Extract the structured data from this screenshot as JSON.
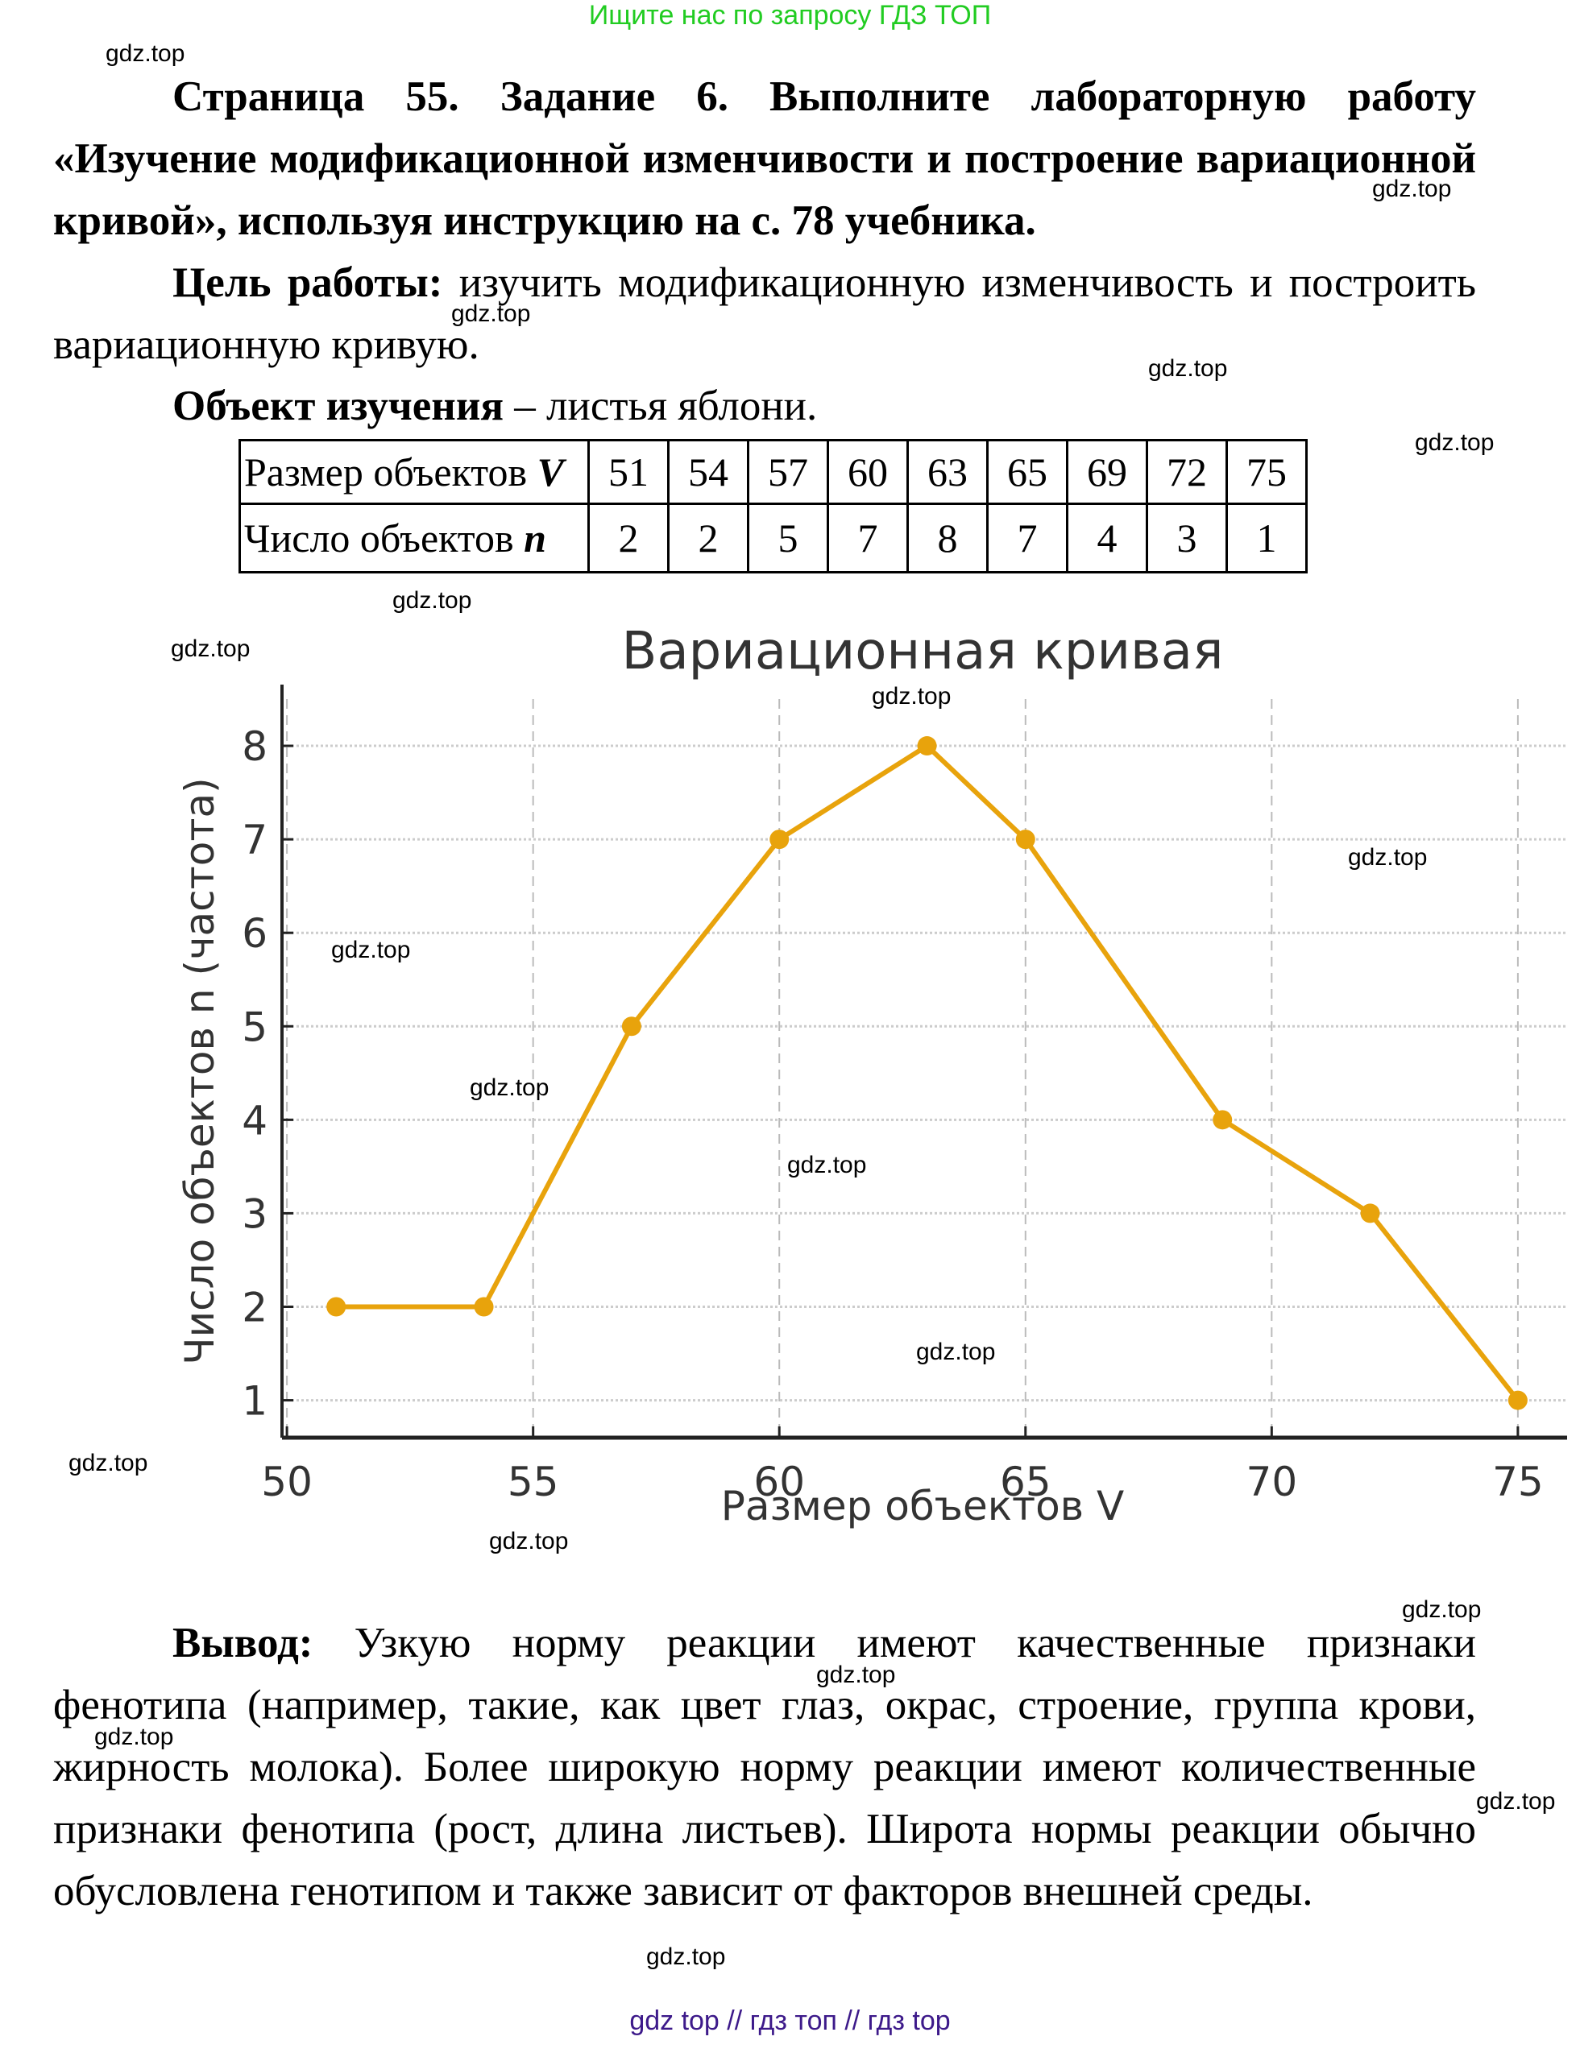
{
  "banner": "Ищите нас по запросу ГДЗ ТОП",
  "heading": "Страница 55. Задание 6. Выполните лабораторную работу «Изучение модификационной изменчивости и построение вариационной кривой», используя инструкцию на с. 78 учебника.",
  "goal": {
    "label": "Цель работы:",
    "text": " изучить модификационную изменчивость и построить вариационную кривую."
  },
  "object": {
    "label": "Объект изучения",
    "text": " – листья яблони."
  },
  "table": {
    "row1_header": "Размер объектов",
    "row1_var": "V",
    "row2_header": "Число объектов",
    "row2_var": "n",
    "sizes": [
      "51",
      "54",
      "57",
      "60",
      "63",
      "65",
      "69",
      "72",
      "75"
    ],
    "counts": [
      "2",
      "2",
      "5",
      "7",
      "8",
      "7",
      "4",
      "3",
      "1"
    ]
  },
  "chart_data": {
    "type": "line",
    "title": "Вариационная кривая",
    "xlabel": "Размер объектов V",
    "ylabel": "Число объектов n (частота)",
    "x": [
      51,
      54,
      57,
      60,
      63,
      65,
      69,
      72,
      75
    ],
    "series": [
      {
        "name": "Число объектов n",
        "values": [
          2,
          2,
          5,
          7,
          8,
          7,
          4,
          3,
          1
        ],
        "color": "#E8A30C",
        "marker": "circle"
      }
    ],
    "xticks": [
      50,
      55,
      60,
      65,
      70,
      75
    ],
    "yticks": [
      1,
      2,
      3,
      4,
      5,
      6,
      7,
      8
    ],
    "xlim": [
      49.9,
      76.0
    ],
    "ylim": [
      0.6,
      8.5
    ],
    "grid": true,
    "legend": "none"
  },
  "conclusion": {
    "label": "Вывод:",
    "text": " Узкую норму реакции имеют качественные признаки фенотипа (например, такие, как цвет глаз, окрас, строение, группа крови, жирность молока). Более широкую норму реакции имеют количественные признаки фенотипа (рост, длина листьев). Широта нормы реакции обычно обусловлена генотипом и также зависит от факторов внешней среды."
  },
  "watermark": "gdz.top",
  "footer": "gdz top  //  гдз топ  //  гдз top"
}
